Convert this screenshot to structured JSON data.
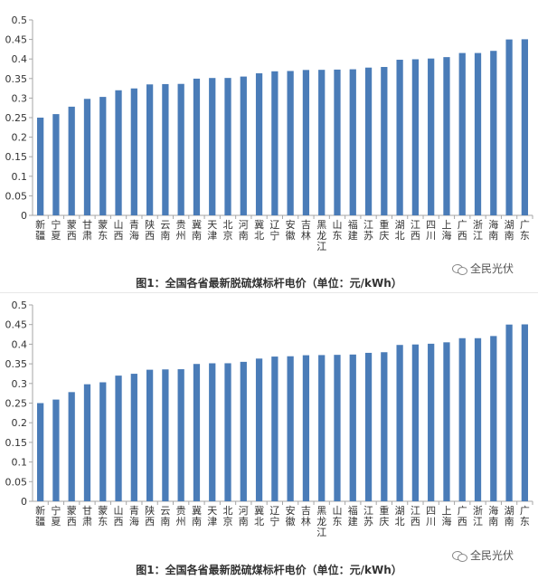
{
  "chart_data": [
    {
      "type": "bar",
      "title": "",
      "xlabel": "",
      "ylabel": "",
      "ylim": [
        0,
        0.5
      ],
      "yticks": [
        "0",
        "0.05",
        "0.1",
        "0.15",
        "0.2",
        "0.25",
        "0.3",
        "0.35",
        "0.4",
        "0.45",
        "0.5"
      ],
      "grid": false,
      "bar_color": "#4a7cb8",
      "categories": [
        "新疆",
        "宁夏",
        "蒙西",
        "甘肃",
        "蒙东",
        "山西",
        "青海",
        "陕西",
        "云南",
        "贵州",
        "冀南",
        "天津",
        "北京",
        "河南",
        "冀北",
        "辽宁",
        "安徽",
        "吉林",
        "黑龙江",
        "山东",
        "福建",
        "江苏",
        "重庆",
        "湖北",
        "江西",
        "四川",
        "上海",
        "广西",
        "浙江",
        "海南",
        "湖南",
        "广东"
      ],
      "values": [
        0.25,
        0.259,
        0.278,
        0.298,
        0.303,
        0.32,
        0.3247,
        0.335,
        0.3358,
        0.3363,
        0.3497,
        0.3514,
        0.3515,
        0.3551,
        0.3634,
        0.3685,
        0.3693,
        0.3719,
        0.3723,
        0.3729,
        0.3737,
        0.378,
        0.3796,
        0.3981,
        0.3993,
        0.4012,
        0.4048,
        0.4153,
        0.4153,
        0.4208,
        0.45,
        0.4505
      ],
      "caption": "图1：全国各省最新脱硫煤标杆电价（单位：元/kWh）",
      "watermark": "全民光伏"
    },
    {
      "type": "bar",
      "title": "",
      "xlabel": "",
      "ylabel": "",
      "ylim": [
        0,
        0.5
      ],
      "yticks": [
        "0",
        "0.05",
        "0.1",
        "0.15",
        "0.2",
        "0.25",
        "0.3",
        "0.35",
        "0.4",
        "0.45",
        "0.5"
      ],
      "grid": false,
      "bar_color": "#4a7cb8",
      "categories": [
        "新疆",
        "宁夏",
        "蒙西",
        "甘肃",
        "蒙东",
        "山西",
        "青海",
        "陕西",
        "云南",
        "贵州",
        "冀南",
        "天津",
        "北京",
        "河南",
        "冀北",
        "辽宁",
        "安徽",
        "吉林",
        "黑龙江",
        "山东",
        "福建",
        "江苏",
        "重庆",
        "湖北",
        "江西",
        "四川",
        "上海",
        "广西",
        "浙江",
        "海南",
        "湖南",
        "广东"
      ],
      "values": [
        0.25,
        0.259,
        0.278,
        0.298,
        0.303,
        0.32,
        0.3247,
        0.335,
        0.3358,
        0.3363,
        0.3497,
        0.3514,
        0.3515,
        0.3551,
        0.3634,
        0.3685,
        0.3693,
        0.3719,
        0.3723,
        0.3729,
        0.3737,
        0.378,
        0.3796,
        0.3981,
        0.3993,
        0.4012,
        0.4048,
        0.4153,
        0.4153,
        0.4208,
        0.45,
        0.4505
      ],
      "caption": "图1：全国各省最新脱硫煤标杆电价（单位：元/kWh）",
      "watermark": "全民光伏"
    }
  ]
}
